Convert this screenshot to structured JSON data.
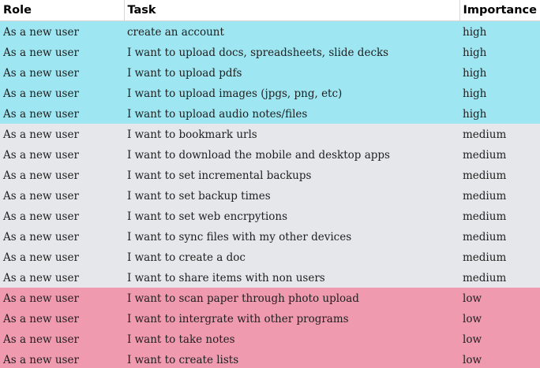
{
  "header": {
    "role": "Role",
    "task": "Task",
    "importance": "Importance"
  },
  "colors": {
    "high": "#9ee6f1",
    "medium": "#e6e7ea",
    "low": "#f09ab0"
  },
  "rows": [
    {
      "role": "As a new user",
      "task": "create an account",
      "importance": "high"
    },
    {
      "role": "As a new user",
      "task": "I want to upload docs, spreadsheets, slide decks",
      "importance": "high"
    },
    {
      "role": "As a new user",
      "task": "I want to upload pdfs",
      "importance": "high"
    },
    {
      "role": "As a new user",
      "task": "I want to upload images (jpgs, png, etc)",
      "importance": "high"
    },
    {
      "role": "As a new user",
      "task": "I want to upload audio notes/files",
      "importance": "high"
    },
    {
      "role": "As a new user",
      "task": "I want to bookmark urls",
      "importance": "medium"
    },
    {
      "role": "As a new user",
      "task": "I want to download the mobile and desktop apps",
      "importance": "medium"
    },
    {
      "role": "As a new user",
      "task": "I want to set incremental backups",
      "importance": "medium"
    },
    {
      "role": "As a new user",
      "task": "I want to set backup times",
      "importance": "medium"
    },
    {
      "role": "As a new user",
      "task": "I want to set web encrpytions",
      "importance": "medium"
    },
    {
      "role": "As a new user",
      "task": "I want to sync files with my other devices",
      "importance": "medium"
    },
    {
      "role": "As a new user",
      "task": "I want to create a doc",
      "importance": "medium"
    },
    {
      "role": "As a new user",
      "task": "I want to share items with non users",
      "importance": "medium"
    },
    {
      "role": "As a new user",
      "task": "I want to scan paper through photo upload",
      "importance": "low"
    },
    {
      "role": "As a new user",
      "task": "I want to intergrate with other programs",
      "importance": "low"
    },
    {
      "role": "As a new user",
      "task": "I want to take notes",
      "importance": "low"
    },
    {
      "role": "As a new user",
      "task": "I want to create lists",
      "importance": "low"
    }
  ]
}
